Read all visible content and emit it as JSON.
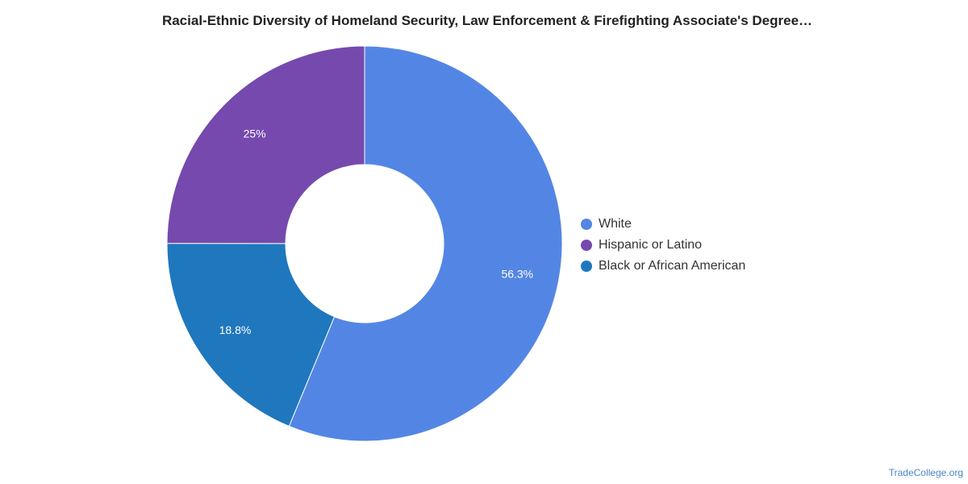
{
  "chart_data": {
    "type": "pie",
    "donut": true,
    "title": "Racial-Ethnic Diversity of Homeland Security, Law Enforcement & Firefighting Associate's Degree…",
    "slices": [
      {
        "name": "White",
        "value": 56.3,
        "label": "56.3%",
        "color": "#5386e4"
      },
      {
        "name": "Black or African American",
        "value": 18.8,
        "label": "18.8%",
        "color": "#1f77bd"
      },
      {
        "name": "Hispanic or Latino",
        "value": 25,
        "label": "25%",
        "color": "#7649ae"
      }
    ],
    "legend": {
      "position": "right",
      "items": [
        {
          "name": "White",
          "color": "#5386e4"
        },
        {
          "name": "Hispanic or Latino",
          "color": "#7649ae"
        },
        {
          "name": "Black or African American",
          "color": "#1f77bd"
        }
      ]
    }
  },
  "watermark": "TradeCollege.org"
}
